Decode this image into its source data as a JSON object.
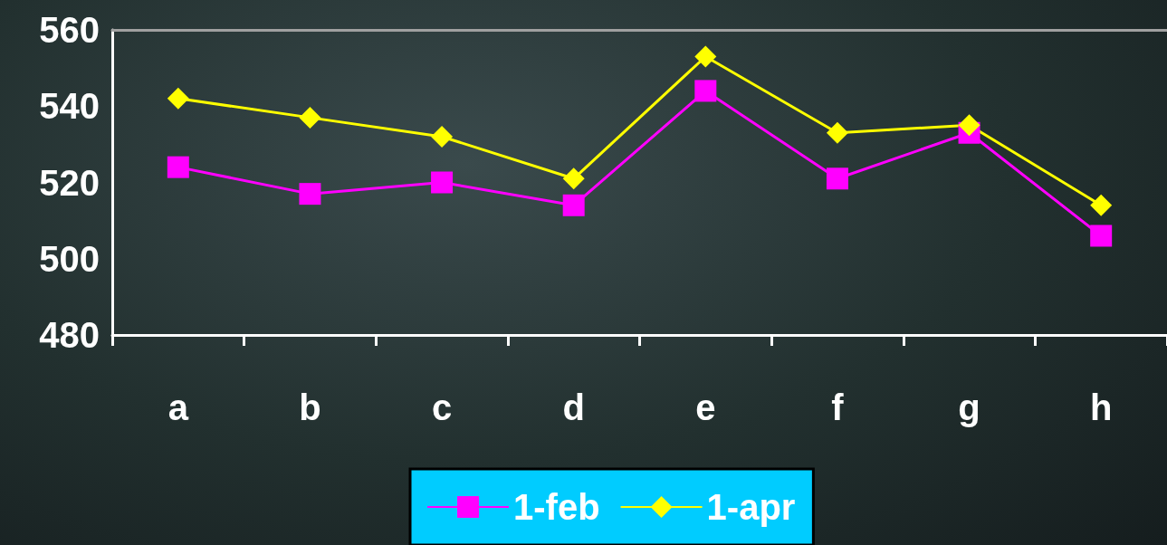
{
  "chart_data": {
    "type": "line",
    "categories": [
      "a",
      "b",
      "c",
      "d",
      "e",
      "f",
      "g",
      "h"
    ],
    "series": [
      {
        "name": "1-feb",
        "color": "#ff00ff",
        "marker": "square",
        "values": [
          524,
          517,
          520,
          514,
          544,
          521,
          533,
          506
        ]
      },
      {
        "name": "1-apr",
        "color": "#ffff00",
        "marker": "diamond",
        "values": [
          542,
          537,
          532,
          521,
          553,
          533,
          535,
          514
        ]
      }
    ],
    "ylim": [
      480,
      560
    ],
    "yticks": [
      480,
      500,
      520,
      540,
      560
    ],
    "grid": false,
    "legend": "bottom",
    "line_style": "solid"
  }
}
